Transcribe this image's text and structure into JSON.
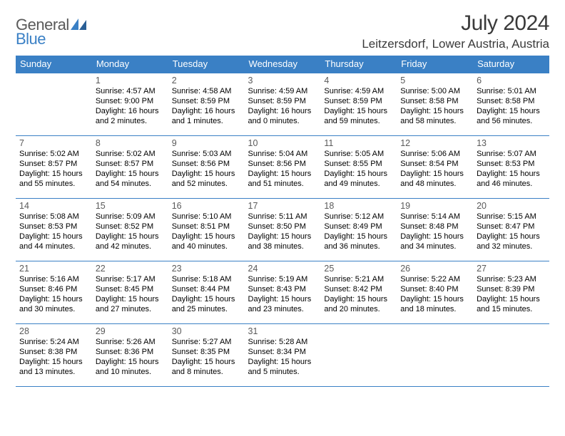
{
  "logo": {
    "part1": "General",
    "part2": "Blue"
  },
  "title": "July 2024",
  "location": "Leitzersdorf, Lower Austria, Austria",
  "colors": {
    "header_bg": "#3a80c5",
    "header_text": "#ffffff",
    "rule": "#3a80c5",
    "logo_gray": "#5a5a5a",
    "logo_blue": "#3a80c5",
    "title_color": "#3a3a3a",
    "body_text": "#000000",
    "daynum_color": "#5a5a5a",
    "page_bg": "#ffffff"
  },
  "typography": {
    "month_title_fontsize": 30,
    "location_fontsize": 17,
    "weekday_fontsize": 13,
    "daynum_fontsize": 12.5,
    "cell_fontsize": 11,
    "logo_fontsize": 22
  },
  "weekdays": [
    "Sunday",
    "Monday",
    "Tuesday",
    "Wednesday",
    "Thursday",
    "Friday",
    "Saturday"
  ],
  "grid": [
    [
      null,
      {
        "n": "1",
        "sr": "Sunrise: 4:57 AM",
        "ss": "Sunset: 9:00 PM",
        "d1": "Daylight: 16 hours",
        "d2": "and 2 minutes."
      },
      {
        "n": "2",
        "sr": "Sunrise: 4:58 AM",
        "ss": "Sunset: 8:59 PM",
        "d1": "Daylight: 16 hours",
        "d2": "and 1 minutes."
      },
      {
        "n": "3",
        "sr": "Sunrise: 4:59 AM",
        "ss": "Sunset: 8:59 PM",
        "d1": "Daylight: 16 hours",
        "d2": "and 0 minutes."
      },
      {
        "n": "4",
        "sr": "Sunrise: 4:59 AM",
        "ss": "Sunset: 8:59 PM",
        "d1": "Daylight: 15 hours",
        "d2": "and 59 minutes."
      },
      {
        "n": "5",
        "sr": "Sunrise: 5:00 AM",
        "ss": "Sunset: 8:58 PM",
        "d1": "Daylight: 15 hours",
        "d2": "and 58 minutes."
      },
      {
        "n": "6",
        "sr": "Sunrise: 5:01 AM",
        "ss": "Sunset: 8:58 PM",
        "d1": "Daylight: 15 hours",
        "d2": "and 56 minutes."
      }
    ],
    [
      {
        "n": "7",
        "sr": "Sunrise: 5:02 AM",
        "ss": "Sunset: 8:57 PM",
        "d1": "Daylight: 15 hours",
        "d2": "and 55 minutes."
      },
      {
        "n": "8",
        "sr": "Sunrise: 5:02 AM",
        "ss": "Sunset: 8:57 PM",
        "d1": "Daylight: 15 hours",
        "d2": "and 54 minutes."
      },
      {
        "n": "9",
        "sr": "Sunrise: 5:03 AM",
        "ss": "Sunset: 8:56 PM",
        "d1": "Daylight: 15 hours",
        "d2": "and 52 minutes."
      },
      {
        "n": "10",
        "sr": "Sunrise: 5:04 AM",
        "ss": "Sunset: 8:56 PM",
        "d1": "Daylight: 15 hours",
        "d2": "and 51 minutes."
      },
      {
        "n": "11",
        "sr": "Sunrise: 5:05 AM",
        "ss": "Sunset: 8:55 PM",
        "d1": "Daylight: 15 hours",
        "d2": "and 49 minutes."
      },
      {
        "n": "12",
        "sr": "Sunrise: 5:06 AM",
        "ss": "Sunset: 8:54 PM",
        "d1": "Daylight: 15 hours",
        "d2": "and 48 minutes."
      },
      {
        "n": "13",
        "sr": "Sunrise: 5:07 AM",
        "ss": "Sunset: 8:53 PM",
        "d1": "Daylight: 15 hours",
        "d2": "and 46 minutes."
      }
    ],
    [
      {
        "n": "14",
        "sr": "Sunrise: 5:08 AM",
        "ss": "Sunset: 8:53 PM",
        "d1": "Daylight: 15 hours",
        "d2": "and 44 minutes."
      },
      {
        "n": "15",
        "sr": "Sunrise: 5:09 AM",
        "ss": "Sunset: 8:52 PM",
        "d1": "Daylight: 15 hours",
        "d2": "and 42 minutes."
      },
      {
        "n": "16",
        "sr": "Sunrise: 5:10 AM",
        "ss": "Sunset: 8:51 PM",
        "d1": "Daylight: 15 hours",
        "d2": "and 40 minutes."
      },
      {
        "n": "17",
        "sr": "Sunrise: 5:11 AM",
        "ss": "Sunset: 8:50 PM",
        "d1": "Daylight: 15 hours",
        "d2": "and 38 minutes."
      },
      {
        "n": "18",
        "sr": "Sunrise: 5:12 AM",
        "ss": "Sunset: 8:49 PM",
        "d1": "Daylight: 15 hours",
        "d2": "and 36 minutes."
      },
      {
        "n": "19",
        "sr": "Sunrise: 5:14 AM",
        "ss": "Sunset: 8:48 PM",
        "d1": "Daylight: 15 hours",
        "d2": "and 34 minutes."
      },
      {
        "n": "20",
        "sr": "Sunrise: 5:15 AM",
        "ss": "Sunset: 8:47 PM",
        "d1": "Daylight: 15 hours",
        "d2": "and 32 minutes."
      }
    ],
    [
      {
        "n": "21",
        "sr": "Sunrise: 5:16 AM",
        "ss": "Sunset: 8:46 PM",
        "d1": "Daylight: 15 hours",
        "d2": "and 30 minutes."
      },
      {
        "n": "22",
        "sr": "Sunrise: 5:17 AM",
        "ss": "Sunset: 8:45 PM",
        "d1": "Daylight: 15 hours",
        "d2": "and 27 minutes."
      },
      {
        "n": "23",
        "sr": "Sunrise: 5:18 AM",
        "ss": "Sunset: 8:44 PM",
        "d1": "Daylight: 15 hours",
        "d2": "and 25 minutes."
      },
      {
        "n": "24",
        "sr": "Sunrise: 5:19 AM",
        "ss": "Sunset: 8:43 PM",
        "d1": "Daylight: 15 hours",
        "d2": "and 23 minutes."
      },
      {
        "n": "25",
        "sr": "Sunrise: 5:21 AM",
        "ss": "Sunset: 8:42 PM",
        "d1": "Daylight: 15 hours",
        "d2": "and 20 minutes."
      },
      {
        "n": "26",
        "sr": "Sunrise: 5:22 AM",
        "ss": "Sunset: 8:40 PM",
        "d1": "Daylight: 15 hours",
        "d2": "and 18 minutes."
      },
      {
        "n": "27",
        "sr": "Sunrise: 5:23 AM",
        "ss": "Sunset: 8:39 PM",
        "d1": "Daylight: 15 hours",
        "d2": "and 15 minutes."
      }
    ],
    [
      {
        "n": "28",
        "sr": "Sunrise: 5:24 AM",
        "ss": "Sunset: 8:38 PM",
        "d1": "Daylight: 15 hours",
        "d2": "and 13 minutes."
      },
      {
        "n": "29",
        "sr": "Sunrise: 5:26 AM",
        "ss": "Sunset: 8:36 PM",
        "d1": "Daylight: 15 hours",
        "d2": "and 10 minutes."
      },
      {
        "n": "30",
        "sr": "Sunrise: 5:27 AM",
        "ss": "Sunset: 8:35 PM",
        "d1": "Daylight: 15 hours",
        "d2": "and 8 minutes."
      },
      {
        "n": "31",
        "sr": "Sunrise: 5:28 AM",
        "ss": "Sunset: 8:34 PM",
        "d1": "Daylight: 15 hours",
        "d2": "and 5 minutes."
      },
      null,
      null,
      null
    ]
  ]
}
